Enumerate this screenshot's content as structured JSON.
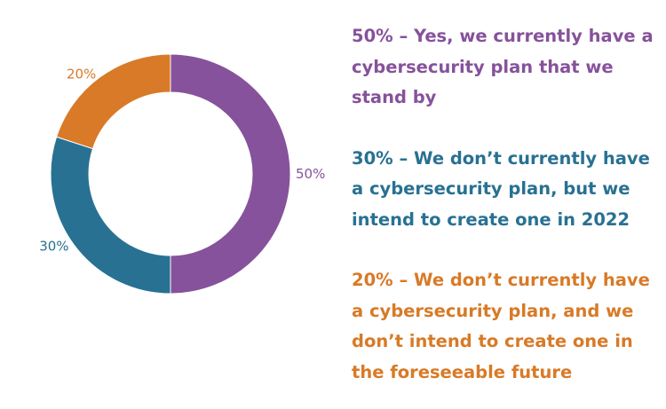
{
  "chart_data": {
    "type": "pie",
    "subtype": "donut",
    "slices": [
      {
        "label": "50%",
        "value": 50,
        "color": "#86529b"
      },
      {
        "label": "30%",
        "value": 30,
        "color": "#287192"
      },
      {
        "label": "20%",
        "value": 20,
        "color": "#d87a27"
      }
    ],
    "legend": [
      {
        "text": "50% – Yes, we currently have a cybersecurity plan that we stand by",
        "color": "#86529b"
      },
      {
        "text": "30% – We don’t currently have a cybersecurity plan, but we intend to create one in 2022",
        "color": "#287192"
      },
      {
        "text": "20% – We don’t currently have a cybersecurity plan, and we don’t intend to create one in the foreseeable future",
        "color": "#d87a27"
      }
    ]
  }
}
